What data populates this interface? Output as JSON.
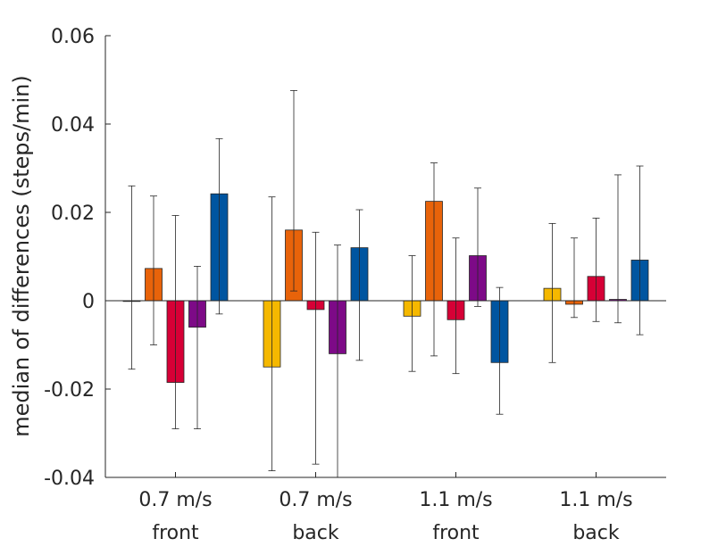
{
  "chart_data": {
    "type": "bar",
    "title": "",
    "xlabel": "",
    "ylabel": "median of differences (steps/min)",
    "ylim": [
      -0.04,
      0.06
    ],
    "yticks": [
      -0.04,
      -0.02,
      0,
      0.02,
      0.04,
      0.06
    ],
    "ytick_labels": [
      "-0.04",
      "-0.02",
      "0",
      "0.02",
      "0.04",
      "0.06"
    ],
    "categories": [
      {
        "line1": "0.7 m/s",
        "line2": "front"
      },
      {
        "line1": "0.7 m/s",
        "line2": "back"
      },
      {
        "line1": "1.1 m/s",
        "line2": "front"
      },
      {
        "line1": "1.1 m/s",
        "line2": "back"
      }
    ],
    "series": [
      {
        "color": "#f5b800",
        "values": [
          0.0,
          -0.015,
          -0.0035,
          0.0028
        ],
        "err_low": [
          -0.0155,
          -0.0385,
          -0.016,
          -0.014
        ],
        "err_high": [
          0.026,
          0.0235,
          0.0102,
          0.0175
        ]
      },
      {
        "color": "#e8630a",
        "values": [
          0.0073,
          0.016,
          0.0225,
          -0.0008
        ],
        "err_low": [
          -0.01,
          0.0022,
          -0.0125,
          -0.0038
        ],
        "err_high": [
          0.0237,
          0.0476,
          0.0312,
          0.0142
        ]
      },
      {
        "color": "#d60036",
        "values": [
          -0.0185,
          -0.002,
          -0.0043,
          0.0055
        ],
        "err_low": [
          -0.029,
          -0.037,
          -0.0165,
          -0.0047
        ],
        "err_high": [
          0.0193,
          0.0155,
          0.0142,
          0.0187
        ]
      },
      {
        "color": "#7d0a87",
        "values": [
          -0.006,
          -0.012,
          0.0102,
          0.0003
        ],
        "err_low": [
          -0.029,
          -0.04,
          -0.0013,
          -0.005
        ],
        "err_high": [
          0.0078,
          0.0126,
          0.0255,
          0.0285
        ]
      },
      {
        "color": "#0055a0",
        "values": [
          0.0242,
          0.012,
          -0.014,
          0.0092
        ],
        "err_low": [
          -0.003,
          -0.0135,
          -0.0257,
          -0.0077
        ],
        "err_high": [
          0.0367,
          0.0206,
          0.003,
          0.0305
        ]
      }
    ]
  }
}
